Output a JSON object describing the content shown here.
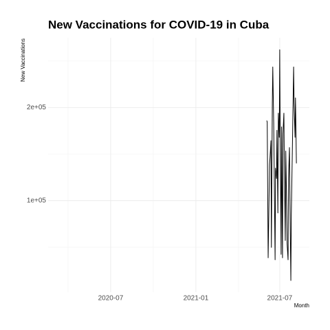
{
  "chart_data": {
    "type": "line",
    "title": "New Vaccinations for COVID-19 in Cuba",
    "x_label": "Month",
    "y_label": "New Vaccinations",
    "x": [
      "2021-06-03",
      "2021-06-04",
      "2021-06-06",
      "2021-06-09",
      "2021-06-10",
      "2021-06-12",
      "2021-06-13",
      "2021-06-15",
      "2021-06-16",
      "2021-06-18",
      "2021-06-21",
      "2021-06-22",
      "2021-06-24",
      "2021-06-25",
      "2021-06-27",
      "2021-06-28",
      "2021-06-30",
      "2021-07-01",
      "2021-07-02",
      "2021-07-04",
      "2021-07-05",
      "2021-07-07",
      "2021-07-08",
      "2021-07-10",
      "2021-07-11",
      "2021-07-13",
      "2021-07-14",
      "2021-07-16",
      "2021-07-17",
      "2021-07-19",
      "2021-07-20",
      "2021-07-22",
      "2021-07-23",
      "2021-07-25",
      "2021-07-26",
      "2021-07-28",
      "2021-07-31",
      "2021-08-01",
      "2021-08-03",
      "2021-08-04",
      "2021-08-06"
    ],
    "series": [
      {
        "name": "New Vaccinations",
        "color": "#000000",
        "values": [
          186000,
          184400,
          38500,
          138500,
          146000,
          164400,
          49600,
          205000,
          243700,
          183000,
          36300,
          134800,
          123700,
          175600,
          86700,
          194000,
          168000,
          262200,
          171900,
          42200,
          179300,
          38500,
          171900,
          194000,
          138500,
          57000,
          153300,
          94000,
          53300,
          36300,
          123700,
          157000,
          101500,
          14100,
          85200,
          146000,
          243700,
          205000,
          168000,
          210400,
          140000
        ]
      }
    ],
    "xlim": [
      "2020-02-17",
      "2021-09-03"
    ],
    "xticks": [
      {
        "value": "2020-07-01",
        "label": "2020-07"
      },
      {
        "value": "2021-01-01",
        "label": "2021-01"
      },
      {
        "value": "2021-07-01",
        "label": "2021-07"
      }
    ],
    "ylim": [
      1500,
      275000
    ],
    "yticks": [
      {
        "value": 100000,
        "label": "1e+05"
      },
      {
        "value": 200000,
        "label": "2e+05"
      }
    ],
    "grid": true,
    "minor_grid": true
  }
}
